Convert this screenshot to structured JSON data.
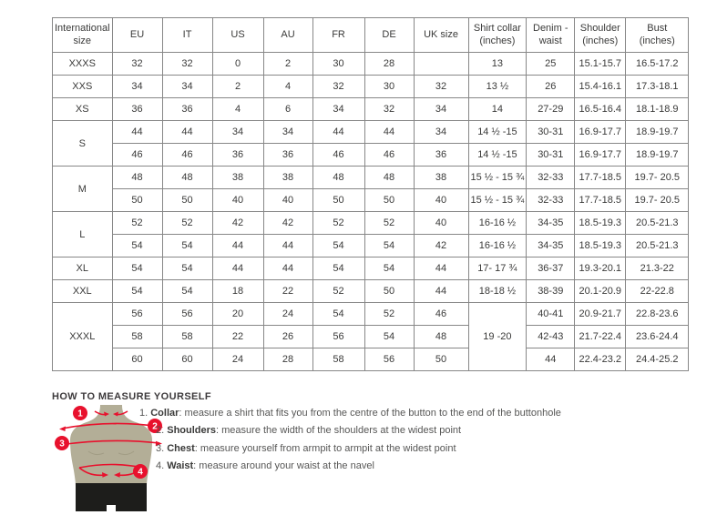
{
  "table": {
    "headers": [
      "International size",
      "EU",
      "IT",
      "US",
      "AU",
      "FR",
      "DE",
      "UK size",
      "Shirt collar (inches)",
      "Denim - waist",
      "Shoulder (inches)",
      "Bust (inches)"
    ],
    "groups": [
      {
        "label": "XXXS",
        "rows": [
          [
            "32",
            "32",
            "0",
            "2",
            "30",
            "28",
            "",
            "13",
            "25",
            "15.1-15.7",
            "16.5-17.2"
          ]
        ]
      },
      {
        "label": "XXS",
        "rows": [
          [
            "34",
            "34",
            "2",
            "4",
            "32",
            "30",
            "32",
            "13 ½",
            "26",
            "15.4-16.1",
            "17.3-18.1"
          ]
        ]
      },
      {
        "label": "XS",
        "rows": [
          [
            "36",
            "36",
            "4",
            "6",
            "34",
            "32",
            "34",
            "14",
            "27-29",
            "16.5-16.4",
            "18.1-18.9"
          ]
        ]
      },
      {
        "label": "S",
        "rows": [
          [
            "44",
            "44",
            "34",
            "34",
            "44",
            "44",
            "34",
            "14 ½ -15",
            "30-31",
            "16.9-17.7",
            "18.9-19.7"
          ],
          [
            "46",
            "46",
            "36",
            "36",
            "46",
            "46",
            "36",
            "14 ½ -15",
            "30-31",
            "16.9-17.7",
            "18.9-19.7"
          ]
        ]
      },
      {
        "label": "M",
        "rows": [
          [
            "48",
            "48",
            "38",
            "38",
            "48",
            "48",
            "38",
            "15 ½ - 15 ¾",
            "32-33",
            "17.7-18.5",
            "19.7- 20.5"
          ],
          [
            "50",
            "50",
            "40",
            "40",
            "50",
            "50",
            "40",
            "15 ½ - 15 ¾",
            "32-33",
            "17.7-18.5",
            "19.7- 20.5"
          ]
        ]
      },
      {
        "label": "L",
        "rows": [
          [
            "52",
            "52",
            "42",
            "42",
            "52",
            "52",
            "40",
            "16-16 ½",
            "34-35",
            "18.5-19.3",
            "20.5-21.3"
          ],
          [
            "54",
            "54",
            "44",
            "44",
            "54",
            "54",
            "42",
            "16-16 ½",
            "34-35",
            "18.5-19.3",
            "20.5-21.3"
          ]
        ]
      },
      {
        "label": "XL",
        "rows": [
          [
            "54",
            "54",
            "44",
            "44",
            "54",
            "54",
            "44",
            "17- 17 ¾",
            "36-37",
            "19.3-20.1",
            "21.3-22"
          ]
        ]
      },
      {
        "label": "XXL",
        "rows": [
          [
            "54",
            "54",
            "18",
            "22",
            "52",
            "50",
            "44",
            "18-18 ½",
            "38-39",
            "20.1-20.9",
            "22-22.8"
          ]
        ]
      },
      {
        "label": "XXXL",
        "collar": "19 -20",
        "rows": [
          [
            "56",
            "56",
            "20",
            "24",
            "54",
            "52",
            "46",
            "40-41",
            "20.9-21.7",
            "22.8-23.6"
          ],
          [
            "58",
            "58",
            "22",
            "26",
            "56",
            "54",
            "48",
            "42-43",
            "21.7-22.4",
            "23.6-24.4"
          ],
          [
            "60",
            "60",
            "24",
            "28",
            "58",
            "56",
            "50",
            "44",
            "22.4-23.2",
            "24.4-25.2"
          ]
        ]
      }
    ]
  },
  "measure": {
    "heading": "HOW TO MEASURE YOURSELF",
    "badges": [
      "1",
      "2",
      "3",
      "4"
    ],
    "steps": [
      {
        "num": "1.",
        "label": "Collar",
        "rest": ": measure a shirt that fits you from the centre of the button to the end of the buttonhole"
      },
      {
        "num": "2.",
        "label": "Shoulders",
        "rest": ": measure the width of the shoulders at the widest point"
      },
      {
        "num": "3.",
        "label": "Chest",
        "rest": ": measure yourself from armpit to armpit at the widest point"
      },
      {
        "num": "4.",
        "label": "Waist",
        "rest": ": measure around your waist at the navel"
      }
    ]
  },
  "colors": {
    "accent_red": "#e8112d",
    "mannequin_body": "#b3ae97",
    "mannequin_shorts": "#1d1d1b",
    "table_border": "#878787",
    "text": "#3a3a39"
  }
}
